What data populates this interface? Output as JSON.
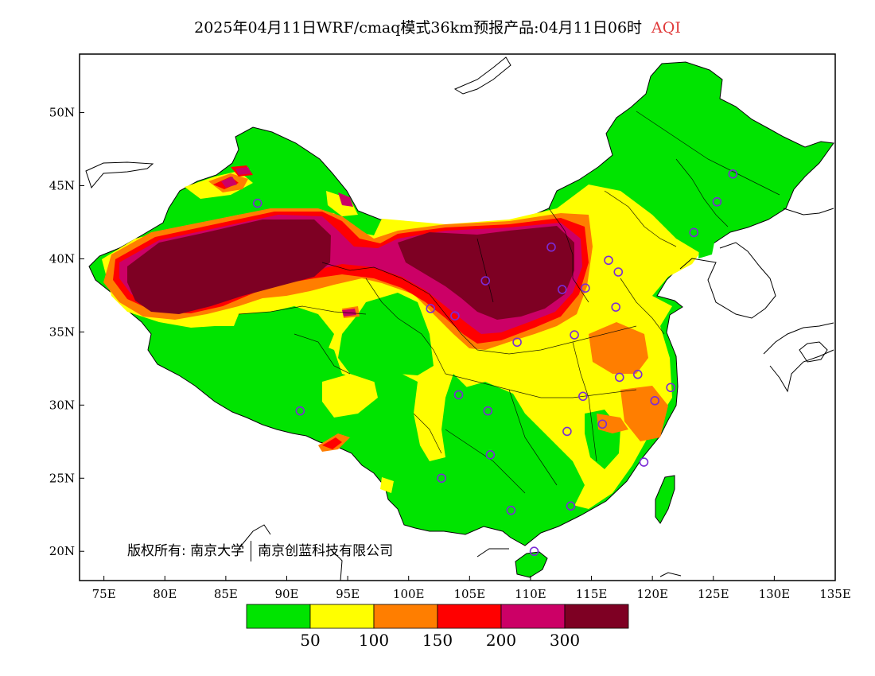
{
  "title": {
    "main": "2025年04月11日WRF/cmaq模式36km预报产品:04月11日06时",
    "variable": "AQI"
  },
  "axes": {
    "lat_ticks": [
      "50N",
      "45N",
      "40N",
      "35N",
      "30N",
      "25N",
      "20N"
    ],
    "lon_ticks": [
      "75E",
      "80E",
      "85E",
      "90E",
      "95E",
      "100E",
      "105E",
      "110E",
      "115E",
      "120E",
      "125E",
      "130E",
      "135E"
    ],
    "lon_range": [
      73,
      135
    ],
    "lat_range": [
      18,
      54
    ]
  },
  "copyright": {
    "left": "版权所有: 南京大学",
    "right": "南京创蓝科技有限公司"
  },
  "legend": {
    "colors": [
      "#00e400",
      "#ffff00",
      "#ff7e00",
      "#ff0000",
      "#cc0066",
      "#7e0023"
    ],
    "labels": [
      "50",
      "100",
      "150",
      "200",
      "300"
    ]
  },
  "colors": {
    "good": "#00e400",
    "moderate": "#ffff00",
    "usg": "#ff7e00",
    "unhealthy": "#ff0000",
    "very_unhealthy": "#cc0066",
    "hazardous": "#7e0023",
    "station_marker": "#7b2bd6"
  },
  "stations": [
    {
      "lon": 87.6,
      "lat": 43.8
    },
    {
      "lon": 91.1,
      "lat": 29.6
    },
    {
      "lon": 101.8,
      "lat": 36.6
    },
    {
      "lon": 103.8,
      "lat": 36.1
    },
    {
      "lon": 106.3,
      "lat": 38.5
    },
    {
      "lon": 111.7,
      "lat": 40.8
    },
    {
      "lon": 112.6,
      "lat": 37.9
    },
    {
      "lon": 114.5,
      "lat": 38.0
    },
    {
      "lon": 116.4,
      "lat": 39.9
    },
    {
      "lon": 117.2,
      "lat": 39.1
    },
    {
      "lon": 123.4,
      "lat": 41.8
    },
    {
      "lon": 125.3,
      "lat": 43.9
    },
    {
      "lon": 126.6,
      "lat": 45.8
    },
    {
      "lon": 117.0,
      "lat": 36.7
    },
    {
      "lon": 113.6,
      "lat": 34.8
    },
    {
      "lon": 108.9,
      "lat": 34.3
    },
    {
      "lon": 104.1,
      "lat": 30.7
    },
    {
      "lon": 106.5,
      "lat": 29.6
    },
    {
      "lon": 114.3,
      "lat": 30.6
    },
    {
      "lon": 117.3,
      "lat": 31.9
    },
    {
      "lon": 118.8,
      "lat": 32.1
    },
    {
      "lon": 120.2,
      "lat": 30.3
    },
    {
      "lon": 121.5,
      "lat": 31.2
    },
    {
      "lon": 113.0,
      "lat": 28.2
    },
    {
      "lon": 115.9,
      "lat": 28.7
    },
    {
      "lon": 106.7,
      "lat": 26.6
    },
    {
      "lon": 102.7,
      "lat": 25.0
    },
    {
      "lon": 108.4,
      "lat": 22.8
    },
    {
      "lon": 113.3,
      "lat": 23.1
    },
    {
      "lon": 119.3,
      "lat": 26.1
    },
    {
      "lon": 110.3,
      "lat": 20.0
    }
  ]
}
